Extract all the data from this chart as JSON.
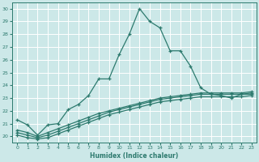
{
  "xlabel": "Humidex (Indice chaleur)",
  "background_color": "#cce8e8",
  "grid_color": "#ffffff",
  "line_color": "#2d7a6e",
  "ylim": [
    19.5,
    30.5
  ],
  "xlim": [
    -0.5,
    23.5
  ],
  "yticks": [
    20,
    21,
    22,
    23,
    24,
    25,
    26,
    27,
    28,
    29,
    30
  ],
  "xticks": [
    0,
    1,
    2,
    3,
    4,
    5,
    6,
    7,
    8,
    9,
    10,
    11,
    12,
    13,
    14,
    15,
    16,
    17,
    18,
    19,
    20,
    21,
    22,
    23
  ],
  "series": [
    [
      21.3,
      20.9,
      20.1,
      20.9,
      21.0,
      22.1,
      22.5,
      23.2,
      24.5,
      24.5,
      26.4,
      28.0,
      30.0,
      29.0,
      28.5,
      26.7,
      26.7,
      25.5,
      23.8,
      23.3,
      23.2,
      23.0,
      23.3,
      23.3
    ],
    [
      20.5,
      20.3,
      20.0,
      20.3,
      20.6,
      20.9,
      21.2,
      21.5,
      21.8,
      22.0,
      22.2,
      22.4,
      22.6,
      22.8,
      23.0,
      23.1,
      23.2,
      23.3,
      23.4,
      23.4,
      23.4,
      23.4,
      23.4,
      23.5
    ],
    [
      20.3,
      20.1,
      19.9,
      20.1,
      20.4,
      20.7,
      21.0,
      21.3,
      21.6,
      21.9,
      22.1,
      22.3,
      22.5,
      22.7,
      22.9,
      23.0,
      23.1,
      23.2,
      23.3,
      23.3,
      23.3,
      23.3,
      23.3,
      23.4
    ],
    [
      20.1,
      19.9,
      19.8,
      19.9,
      20.2,
      20.5,
      20.8,
      21.1,
      21.4,
      21.7,
      21.9,
      22.1,
      22.3,
      22.5,
      22.7,
      22.8,
      22.9,
      23.0,
      23.1,
      23.1,
      23.1,
      23.1,
      23.1,
      23.2
    ]
  ]
}
